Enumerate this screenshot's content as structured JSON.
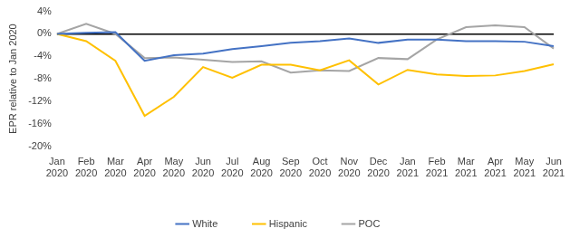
{
  "chart_data": {
    "type": "line",
    "y_label": "EPR relative to Jan 2020",
    "categories": [
      "Jan 2020",
      "Feb 2020",
      "Mar 2020",
      "Apr 2020",
      "May 2020",
      "Jun 2020",
      "Jul 2020",
      "Aug 2020",
      "Sep 2020",
      "Oct 2020",
      "Nov 2020",
      "Dec 2020",
      "Jan 2021",
      "Feb 2021",
      "Mar 2021",
      "Apr 2021",
      "May 2021",
      "Jun 2021"
    ],
    "series": [
      {
        "name": "White",
        "color": "#4472c4",
        "values": [
          0,
          0.2,
          0.3,
          -4.8,
          -3.8,
          -3.5,
          -2.7,
          -2.2,
          -1.6,
          -1.3,
          -0.8,
          -1.6,
          -1.0,
          -1.0,
          -1.3,
          -1.3,
          -1.4,
          -2.2
        ]
      },
      {
        "name": "Hispanic",
        "color": "#ffc000",
        "values": [
          0,
          -1.3,
          -4.8,
          -14.6,
          -11.2,
          -5.9,
          -7.8,
          -5.5,
          -5.5,
          -6.5,
          -4.7,
          -9.0,
          -6.4,
          -7.2,
          -7.5,
          -7.4,
          -6.6,
          -5.4
        ]
      },
      {
        "name": "POC",
        "color": "#a5a5a5",
        "values": [
          0,
          1.8,
          0,
          -4.3,
          -4.2,
          -4.6,
          -5.0,
          -4.9,
          -6.9,
          -6.5,
          -6.6,
          -4.3,
          -4.5,
          -1.0,
          1.2,
          1.5,
          1.2,
          -2.6
        ]
      }
    ],
    "ylim": [
      -20,
      4
    ],
    "yticks": [
      {
        "value": -20,
        "label": "-20%"
      },
      {
        "value": -16,
        "label": "-16%"
      },
      {
        "value": -12,
        "label": "-12%"
      },
      {
        "value": -8,
        "label": "-8%"
      },
      {
        "value": -4,
        "label": "-4%"
      },
      {
        "value": 0,
        "label": "0%"
      },
      {
        "value": 4,
        "label": "4%"
      }
    ],
    "grid": false,
    "legend": "bottom"
  }
}
